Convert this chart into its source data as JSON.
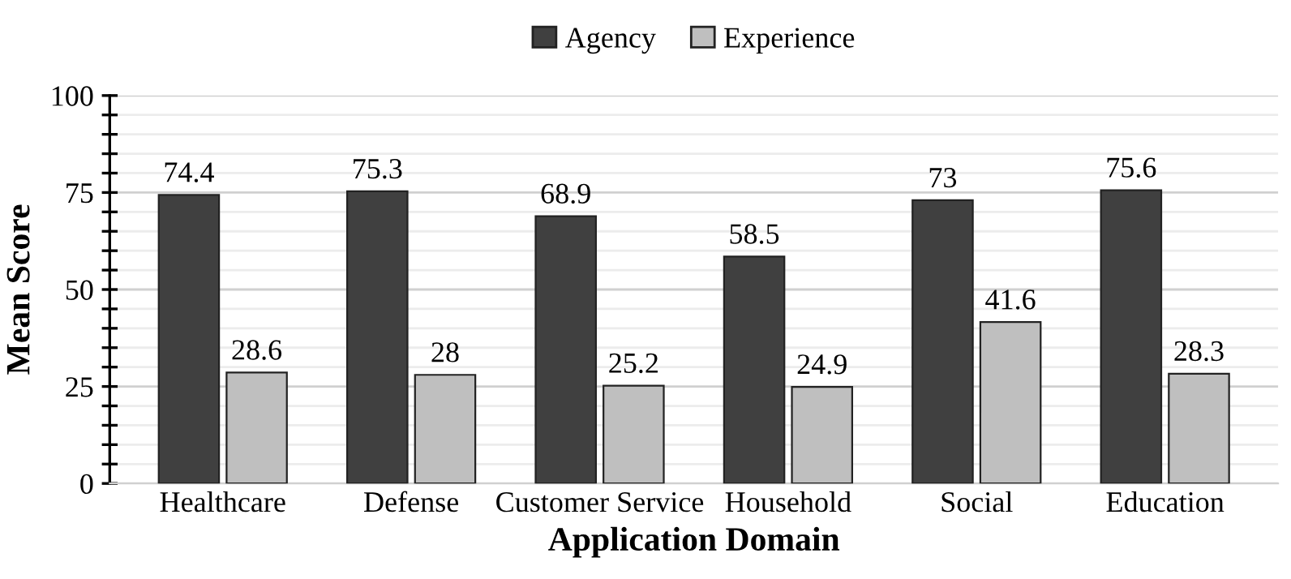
{
  "chart_data": {
    "type": "bar",
    "xlabel": "Application Domain",
    "ylabel": "Mean Score",
    "categories": [
      "Healthcare",
      "Defense",
      "Customer Service",
      "Household",
      "Social",
      "Education"
    ],
    "series": [
      {
        "name": "Agency",
        "color": "#404040",
        "values": [
          74.4,
          75.3,
          68.9,
          58.5,
          73,
          75.6
        ]
      },
      {
        "name": "Experience",
        "color": "#bfbfbf",
        "values": [
          28.6,
          28,
          25.2,
          24.9,
          41.6,
          28.3
        ]
      }
    ],
    "ylim": [
      0,
      100
    ],
    "yticks": [
      0,
      {
        "value": 5,
        "label": null
      },
      {
        "value": 10,
        "label": null
      },
      {
        "value": 15,
        "label": null
      },
      {
        "value": 20,
        "label": null
      },
      25,
      {
        "value": 30,
        "label": null
      },
      {
        "value": 35,
        "label": null
      },
      {
        "value": 40,
        "label": null
      },
      {
        "value": 45,
        "label": null
      },
      50,
      {
        "value": 55,
        "label": null
      },
      {
        "value": 60,
        "label": null
      },
      {
        "value": 65,
        "label": null
      },
      {
        "value": 70,
        "label": null
      },
      75,
      {
        "value": 80,
        "label": null
      },
      {
        "value": 85,
        "label": null
      },
      {
        "value": 90,
        "label": null
      },
      {
        "value": 95,
        "label": null
      },
      100
    ],
    "grid": "y",
    "legend": "top",
    "data_labels": true
  }
}
